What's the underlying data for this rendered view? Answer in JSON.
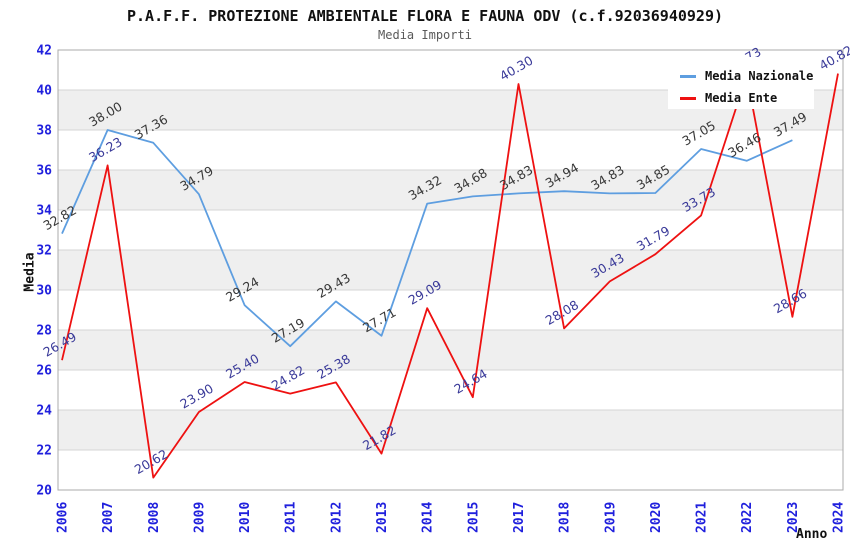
{
  "header": {
    "title": "P.A.F.F. PROTEZIONE AMBIENTALE FLORA E FAUNA ODV (c.f.92036940929)",
    "subtitle": "Media Importi"
  },
  "axes": {
    "y_title": "Media",
    "x_title": "Anno",
    "y_ticks": [
      20,
      22,
      24,
      26,
      28,
      30,
      32,
      34,
      36,
      38,
      40,
      42
    ],
    "tick_color": "#2020DD"
  },
  "legend": {
    "position": "top-right",
    "items": [
      {
        "label": "Media Nazionale",
        "color": "#5E9EE0"
      },
      {
        "label": "Media Ente",
        "color": "#EE1111"
      }
    ]
  },
  "colors": {
    "band_gray": "#EFEFEF",
    "gridline": "#D4D4D4",
    "plot_border": "#ABABAB",
    "background": "#FFFFFF"
  },
  "chart_data": {
    "type": "line",
    "title": "P.A.F.F. PROTEZIONE AMBIENTALE FLORA E FAUNA ODV (c.f.92036940929)",
    "subtitle": "Media Importi",
    "xlabel": "Anno",
    "ylabel": "Media",
    "ylim": [
      20,
      42
    ],
    "ytick_step": 2,
    "grid": "horizontal",
    "alternating_bands": true,
    "legend_position": "top-right",
    "categories": [
      "2006",
      "2007",
      "2008",
      "2009",
      "2010",
      "2011",
      "2012",
      "2013",
      "2014",
      "2015",
      "2017",
      "2018",
      "2019",
      "2020",
      "2021",
      "2022",
      "2023",
      "2024"
    ],
    "series": [
      {
        "name": "Media Nazionale",
        "color": "#5E9EE0",
        "label_color": "#383838",
        "values": [
          32.82,
          38.0,
          37.36,
          34.79,
          29.24,
          27.19,
          29.43,
          27.71,
          34.32,
          34.68,
          34.83,
          34.94,
          34.83,
          34.85,
          37.05,
          36.46,
          37.49,
          null
        ]
      },
      {
        "name": "Media Ente",
        "color": "#EE1111",
        "label_color": "#3A3A99",
        "values": [
          26.49,
          36.23,
          20.62,
          23.9,
          25.4,
          24.82,
          25.38,
          21.82,
          29.09,
          24.64,
          40.3,
          28.08,
          30.43,
          31.79,
          33.73,
          40.73,
          28.66,
          40.82
        ]
      }
    ]
  }
}
